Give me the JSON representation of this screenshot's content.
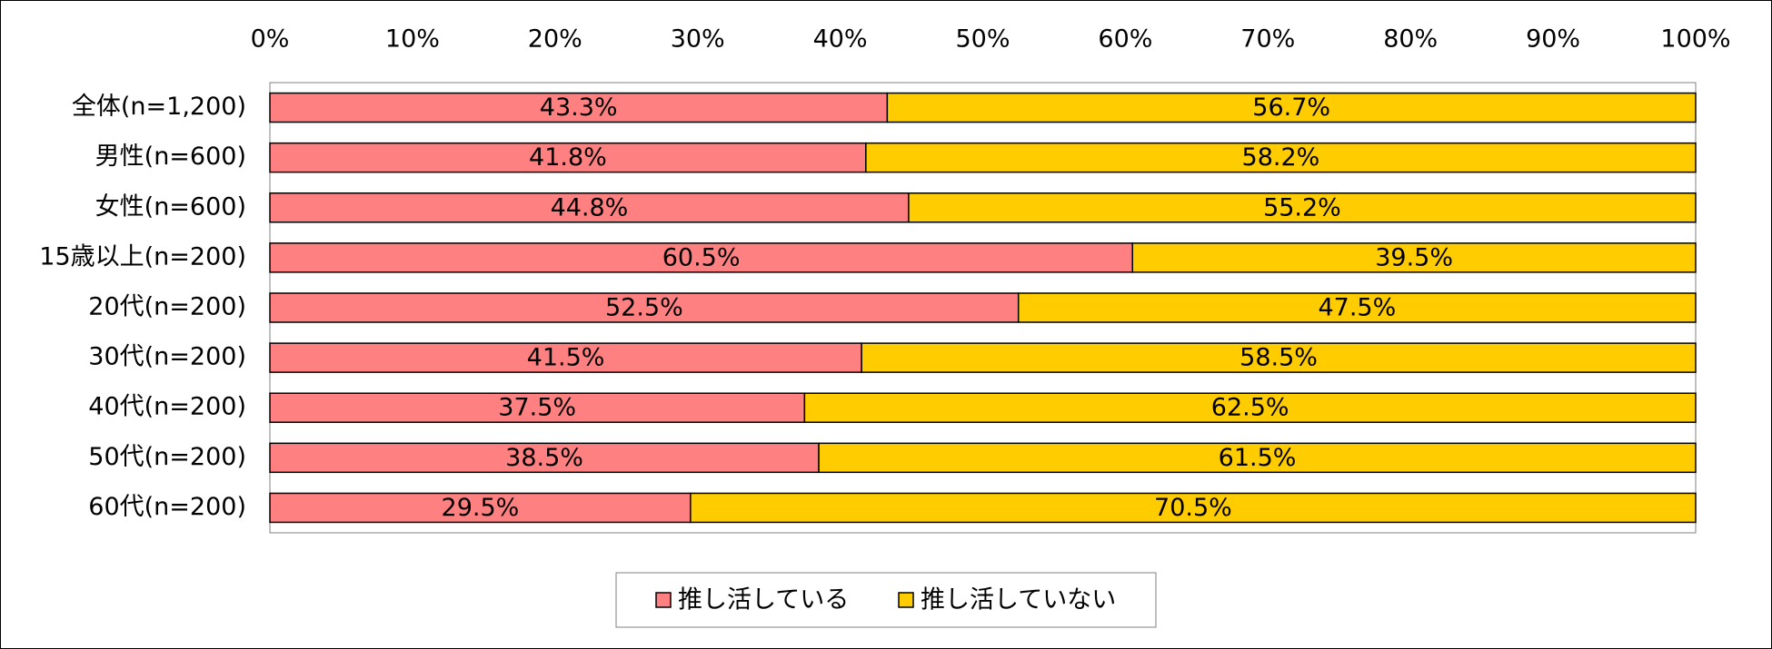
{
  "chart_data": {
    "type": "bar",
    "orientation": "horizontal",
    "stacked": "percent",
    "title": "",
    "xlabel": "",
    "ylabel": "",
    "xlim": [
      0,
      100
    ],
    "x_ticks": [
      "0%",
      "10%",
      "20%",
      "30%",
      "40%",
      "50%",
      "60%",
      "70%",
      "80%",
      "90%",
      "100%"
    ],
    "x_axis_position": "top",
    "grid": false,
    "legend_position": "bottom",
    "categories": [
      "全体(n=1,200)",
      "男性(n=600)",
      "女性(n=600)",
      "15歳以上(n=200)",
      "20代(n=200)",
      "30代(n=200)",
      "40代(n=200)",
      "50代(n=200)",
      "60代(n=200)"
    ],
    "series": [
      {
        "name": "推し活している",
        "color": "#FF8080",
        "values": [
          43.3,
          41.8,
          44.8,
          60.5,
          52.5,
          41.5,
          37.5,
          38.5,
          29.5
        ],
        "labels": [
          "43.3%",
          "41.8%",
          "44.8%",
          "60.5%",
          "52.5%",
          "41.5%",
          "37.5%",
          "38.5%",
          "29.5%"
        ]
      },
      {
        "name": "推し活していない",
        "color": "#FFCC00",
        "values": [
          56.7,
          58.2,
          55.2,
          39.5,
          47.5,
          58.5,
          62.5,
          61.5,
          70.5
        ],
        "labels": [
          "56.7%",
          "58.2%",
          "55.2%",
          "39.5%",
          "47.5%",
          "58.5%",
          "62.5%",
          "61.5%",
          "70.5%"
        ]
      }
    ]
  }
}
